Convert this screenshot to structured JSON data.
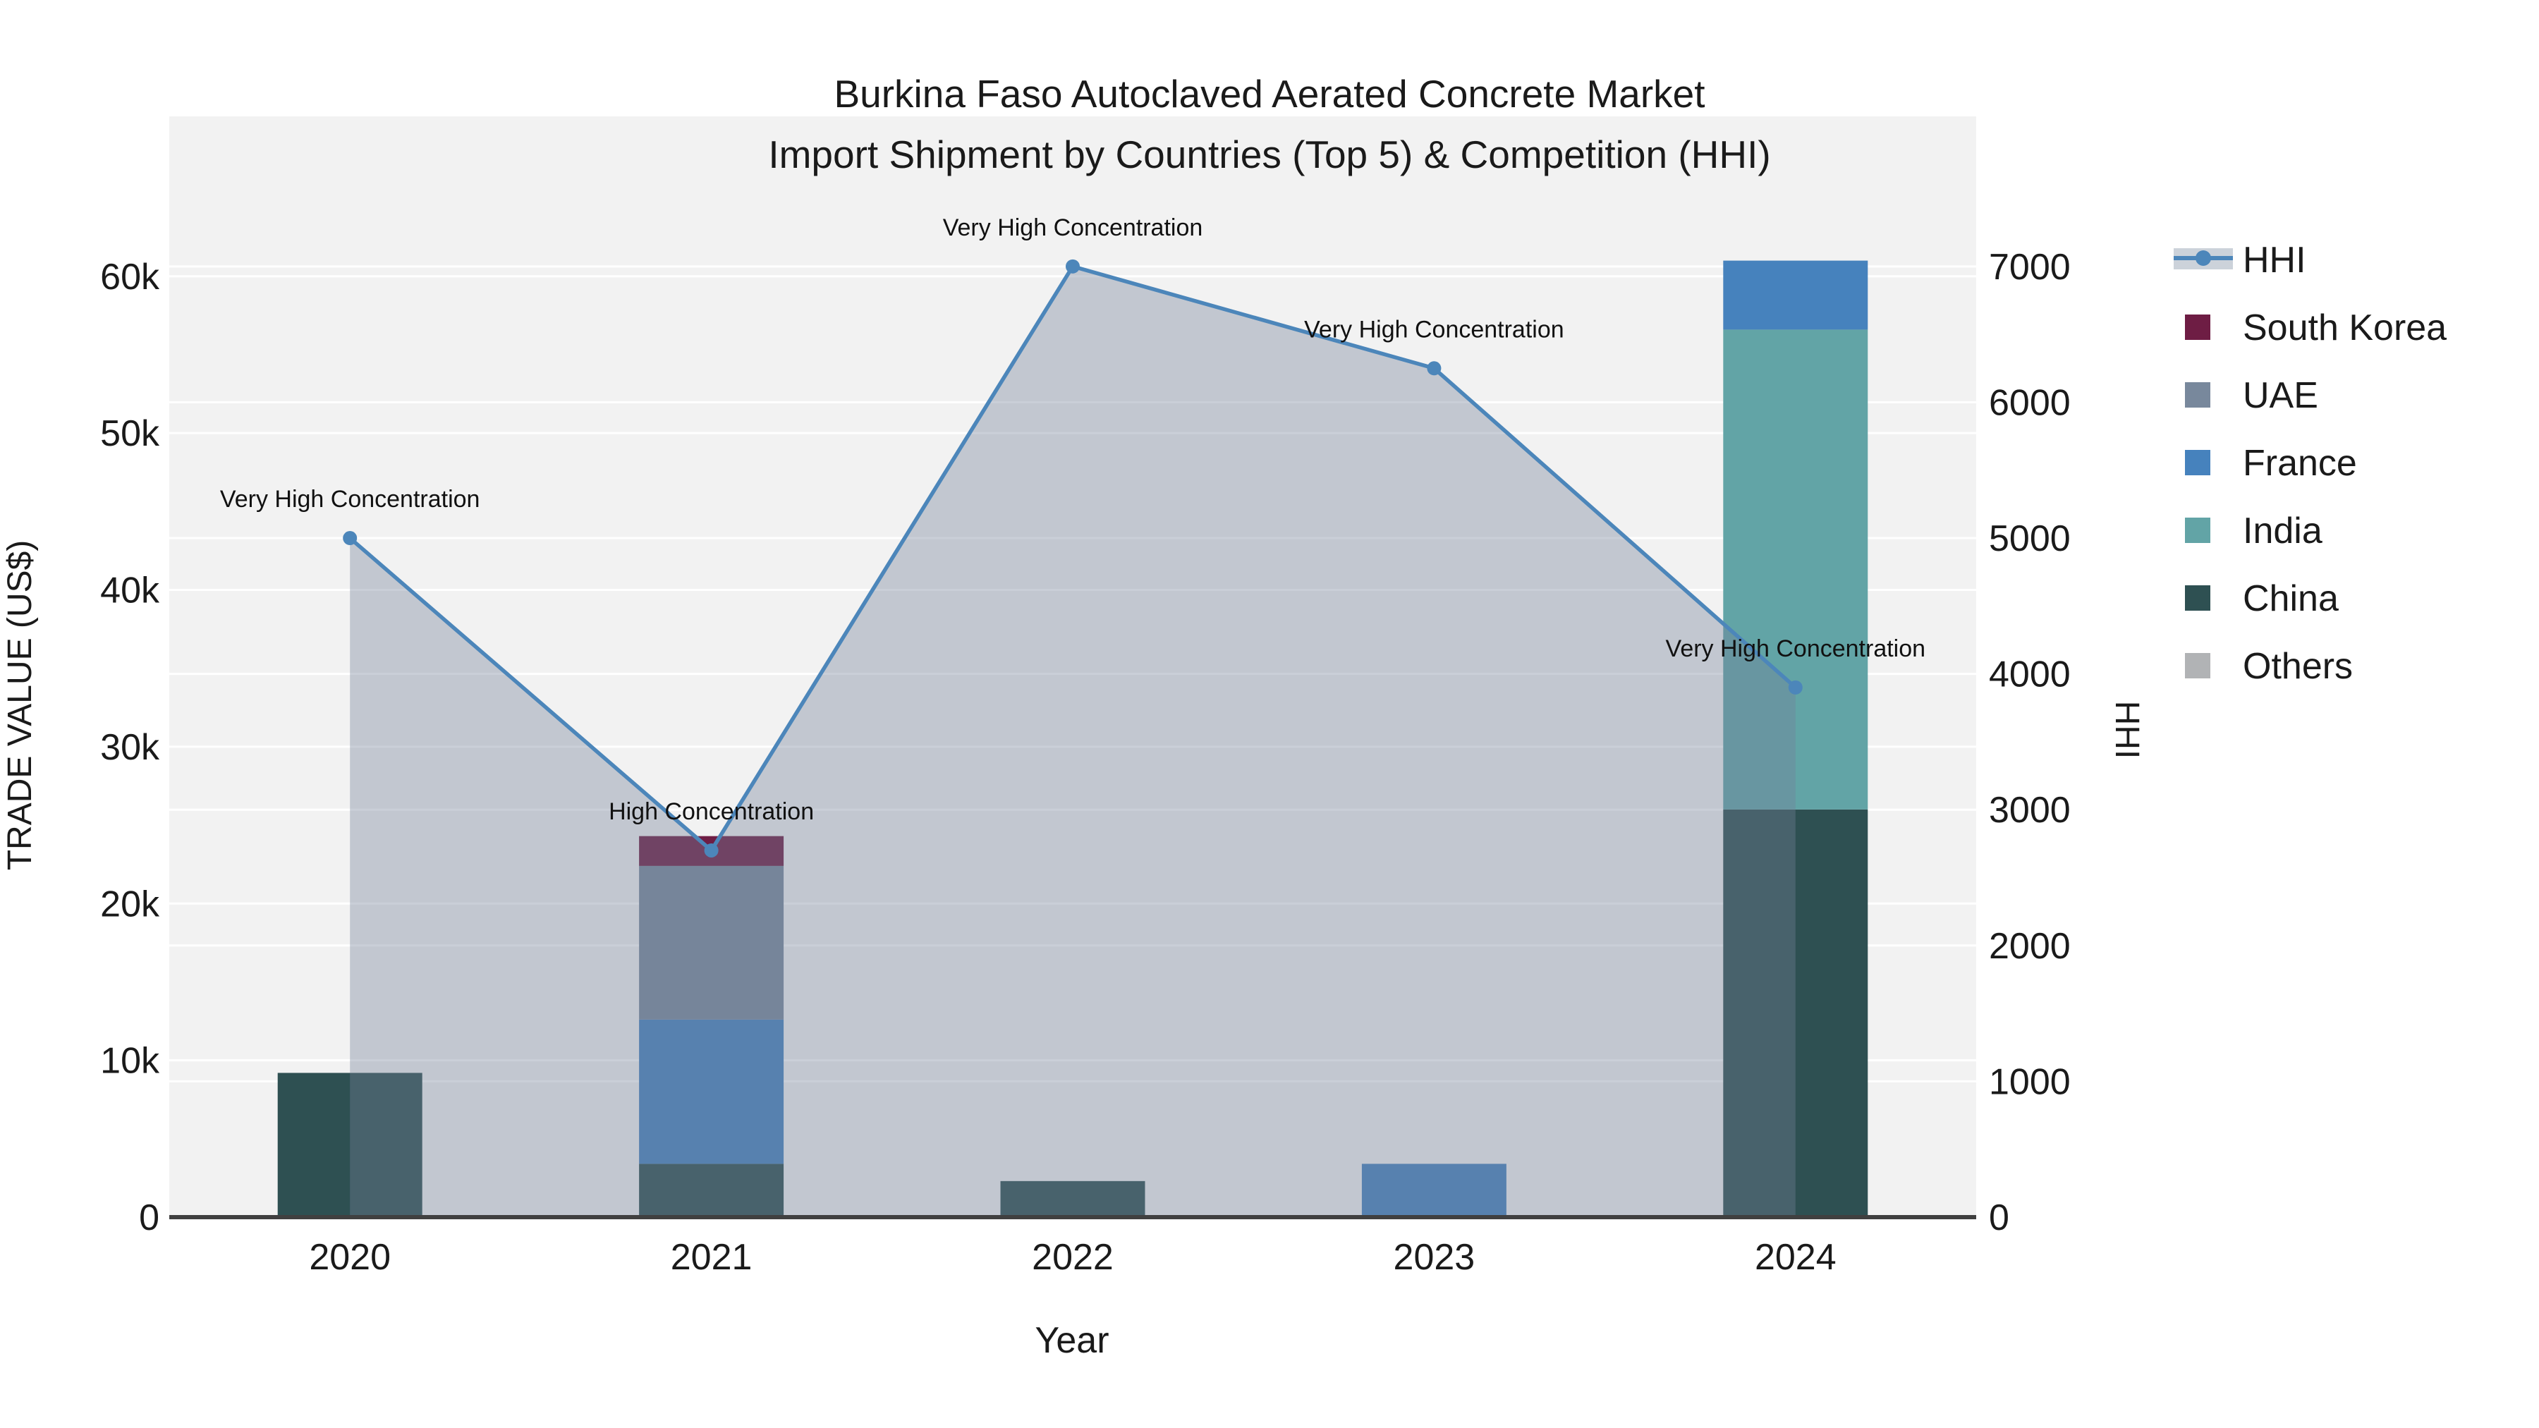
{
  "title": {
    "line1": "Burkina Faso Autoclaved Aerated Concrete Market",
    "line2": "Import Shipment by Countries (Top 5) & Competition (HHI)"
  },
  "axes": {
    "x_title": "Year",
    "y_left_title": "TRADE VALUE (US$)",
    "y_right_title": "HHI"
  },
  "colors": {
    "plot_background": "#f2f2f2",
    "gridline": "#ffffff",
    "axis_line": "#404040",
    "text": "#1a1a1a",
    "hhi_line": "#4c86ba",
    "hhi_area_fill": "rgba(115,130,153,0.38)",
    "legend_hhi_band": "#ccd2da"
  },
  "legend": {
    "items": [
      {
        "label": "HHI",
        "color": "#4c86ba",
        "symbol": "line"
      },
      {
        "label": "South Korea",
        "color": "#6e1d44",
        "symbol": "square"
      },
      {
        "label": "UAE",
        "color": "#78889c",
        "symbol": "square"
      },
      {
        "label": "France",
        "color": "#4682bd",
        "symbol": "square"
      },
      {
        "label": "India",
        "color": "#62a4a6",
        "symbol": "square"
      },
      {
        "label": "China",
        "color": "#2e5052",
        "symbol": "square"
      },
      {
        "label": "Others",
        "color": "#b1b3b5",
        "symbol": "square"
      }
    ]
  },
  "chart_data": {
    "type": "bar+line",
    "categories": [
      "2020",
      "2021",
      "2022",
      "2023",
      "2024"
    ],
    "bar_width_frac": 0.4,
    "series": [
      {
        "name": "South Korea",
        "color": "#6e1d44",
        "values": [
          0,
          1900,
          0,
          0,
          0
        ]
      },
      {
        "name": "UAE",
        "color": "#78889c",
        "values": [
          0,
          9800,
          0,
          0,
          0
        ]
      },
      {
        "name": "France",
        "color": "#4682bd",
        "values": [
          0,
          9200,
          0,
          3400,
          4400
        ]
      },
      {
        "name": "India",
        "color": "#62a4a6",
        "values": [
          0,
          0,
          0,
          0,
          30600
        ]
      },
      {
        "name": "China",
        "color": "#2e5052",
        "values": [
          9200,
          3400,
          2300,
          0,
          26000
        ]
      },
      {
        "name": "Others",
        "color": "#b1b3b5",
        "values": [
          0,
          0,
          0,
          0,
          0
        ]
      }
    ],
    "stack_order_bottom_to_top": [
      "Others",
      "China",
      "India",
      "France",
      "UAE",
      "South Korea"
    ],
    "line": {
      "name": "HHI",
      "axis": "right",
      "values": [
        5000,
        2700,
        7000,
        6250,
        3900
      ],
      "color": "#4c86ba",
      "width": 5.5,
      "marker_radius": 10,
      "area_fill": "rgba(115,130,153,0.38)"
    },
    "annotations": [
      {
        "category": "2020",
        "text": "Very High Concentration"
      },
      {
        "category": "2021",
        "text": "High Concentration"
      },
      {
        "category": "2022",
        "text": "Very High Concentration"
      },
      {
        "category": "2023",
        "text": "Very High Concentration"
      },
      {
        "category": "2024",
        "text": "Very High Concentration"
      }
    ],
    "y_left": {
      "title": "TRADE VALUE (US$)",
      "range": [
        0,
        70200
      ],
      "ticks": [
        0,
        10000,
        20000,
        30000,
        40000,
        50000,
        60000
      ],
      "tick_labels": [
        "0",
        "10k",
        "20k",
        "30k",
        "40k",
        "50k",
        "60k"
      ]
    },
    "y_right": {
      "title": "HHI",
      "range": [
        0,
        8105
      ],
      "ticks": [
        0,
        1000,
        2000,
        3000,
        4000,
        5000,
        6000,
        7000
      ],
      "tick_labels": [
        "0",
        "1000",
        "2000",
        "3000",
        "4000",
        "5000",
        "6000",
        "7000"
      ]
    },
    "x_tick_labels": [
      "2020",
      "2021",
      "2022",
      "2023",
      "2024"
    ]
  }
}
